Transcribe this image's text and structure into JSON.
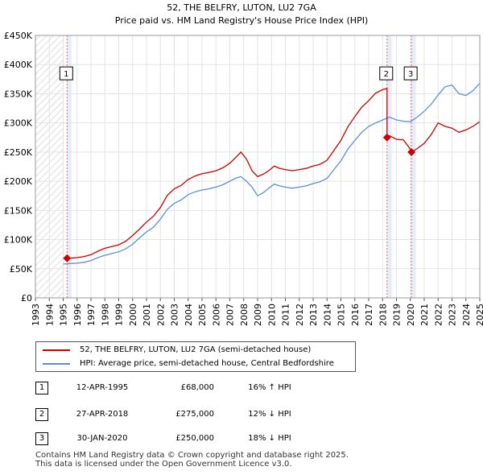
{
  "chart_data": {
    "type": "line",
    "title": "52, THE BELFRY, LUTON, LU2 7GA",
    "subtitle": "Price paid vs. HM Land Registry's House Price Index (HPI)",
    "xlim": [
      1993,
      2025
    ],
    "ylim": [
      0,
      450000
    ],
    "x_ticks": [
      "1993",
      "1994",
      "1995",
      "1996",
      "1997",
      "1998",
      "1999",
      "2000",
      "2001",
      "2002",
      "2003",
      "2004",
      "2005",
      "2006",
      "2007",
      "2008",
      "2009",
      "2010",
      "2011",
      "2012",
      "2013",
      "2014",
      "2015",
      "2016",
      "2017",
      "2018",
      "2019",
      "2020",
      "2021",
      "2022",
      "2023",
      "2024",
      "2025"
    ],
    "y_ticks": [
      {
        "value": 0,
        "label": "£0"
      },
      {
        "value": 50000,
        "label": "£50K"
      },
      {
        "value": 100000,
        "label": "£100K"
      },
      {
        "value": 150000,
        "label": "£150K"
      },
      {
        "value": 200000,
        "label": "£200K"
      },
      {
        "value": 250000,
        "label": "£250K"
      },
      {
        "value": 300000,
        "label": "£300K"
      },
      {
        "value": 350000,
        "label": "£350K"
      },
      {
        "value": 400000,
        "label": "£400K"
      },
      {
        "value": 450000,
        "label": "£450K"
      }
    ],
    "colors": {
      "property": "#cc0000",
      "hpi": "#5b8fd4",
      "sale_line": "#e06666",
      "shade": "#dde6f4",
      "hatch": "#c8c8c8"
    },
    "shaded_ranges": [
      [
        1995.28,
        1995.6
      ],
      [
        2018.32,
        2018.65
      ],
      [
        2020.08,
        2020.4
      ]
    ],
    "hatched_range": [
      1993,
      1995.0
    ],
    "hpi_series": {
      "name": "HPI: Average price, semi-detached house, Central Bedfordshire",
      "x": [
        1995.0,
        1995.5,
        1996.0,
        1996.5,
        1997.0,
        1997.5,
        1998.0,
        1998.5,
        1999.0,
        1999.5,
        2000.0,
        2000.5,
        2001.0,
        2001.5,
        2002.0,
        2002.5,
        2003.0,
        2003.5,
        2004.0,
        2004.5,
        2005.0,
        2005.5,
        2006.0,
        2006.5,
        2007.0,
        2007.4,
        2007.8,
        2008.2,
        2008.6,
        2009.0,
        2009.4,
        2009.8,
        2010.2,
        2010.6,
        2011.0,
        2011.5,
        2012.0,
        2012.5,
        2013.0,
        2013.5,
        2014.0,
        2014.5,
        2015.0,
        2015.5,
        2016.0,
        2016.5,
        2017.0,
        2017.5,
        2018.0,
        2018.5,
        2019.0,
        2019.5,
        2020.0,
        2020.5,
        2021.0,
        2021.5,
        2022.0,
        2022.5,
        2023.0,
        2023.5,
        2024.0,
        2024.5,
        2025.0
      ],
      "y": [
        58000,
        59000,
        59500,
        61000,
        64000,
        69000,
        73000,
        76000,
        79000,
        84000,
        92000,
        103000,
        113000,
        121000,
        135000,
        152000,
        162000,
        168000,
        177000,
        182000,
        185000,
        187000,
        190000,
        194000,
        200000,
        205000,
        208000,
        200000,
        190000,
        175000,
        180000,
        188000,
        195000,
        192000,
        190000,
        188000,
        190000,
        192000,
        196000,
        199000,
        205000,
        220000,
        235000,
        255000,
        270000,
        284000,
        294000,
        300000,
        305000,
        310000,
        305000,
        303000,
        302000,
        310000,
        320000,
        332000,
        348000,
        362000,
        365000,
        350000,
        347000,
        355000,
        368000
      ]
    },
    "price_series": {
      "name": "52, THE BELFRY, LUTON, LU2 7GA (semi-detached house)",
      "x": [
        1995.28,
        1995.5,
        1996.0,
        1996.5,
        1997.0,
        1997.5,
        1998.0,
        1998.5,
        1999.0,
        1999.5,
        2000.0,
        2000.5,
        2001.0,
        2001.5,
        2002.0,
        2002.5,
        2003.0,
        2003.5,
        2004.0,
        2004.5,
        2005.0,
        2005.5,
        2006.0,
        2006.5,
        2007.0,
        2007.4,
        2007.8,
        2008.2,
        2008.6,
        2009.0,
        2009.4,
        2009.8,
        2010.2,
        2010.6,
        2011.0,
        2011.5,
        2012.0,
        2012.5,
        2013.0,
        2013.5,
        2014.0,
        2014.5,
        2015.0,
        2015.5,
        2016.0,
        2016.5,
        2017.0,
        2017.5,
        2018.0,
        2018.32,
        2018.32,
        2018.5,
        2019.0,
        2019.5,
        2020.0,
        2020.08,
        2020.08,
        2020.5,
        2021.0,
        2021.5,
        2022.0,
        2022.5,
        2023.0,
        2023.5,
        2024.0,
        2024.5,
        2025.0
      ],
      "y": [
        68000,
        68000,
        69000,
        71000,
        74000,
        80000,
        85000,
        88000,
        91000,
        97000,
        107000,
        118000,
        130000,
        140000,
        155000,
        176000,
        187000,
        193000,
        203000,
        209000,
        213000,
        215000,
        218000,
        223000,
        231000,
        240000,
        250000,
        238000,
        218000,
        208000,
        212000,
        218000,
        226000,
        222000,
        220000,
        218000,
        220000,
        222000,
        226000,
        229000,
        236000,
        253000,
        270000,
        293000,
        311000,
        327000,
        338000,
        351000,
        357000,
        359000,
        275000,
        278000,
        272000,
        271000,
        255000,
        250000,
        250000,
        256000,
        265000,
        280000,
        300000,
        294000,
        291000,
        284000,
        288000,
        294000,
        302000
      ]
    },
    "sales": [
      {
        "id": "1",
        "x": 1995.28,
        "y": 68000
      },
      {
        "id": "2",
        "x": 2018.32,
        "y": 275000
      },
      {
        "id": "3",
        "x": 2020.08,
        "y": 250000
      }
    ]
  },
  "legend": {
    "property_label": "52, THE BELFRY, LUTON, LU2 7GA (semi-detached house)",
    "hpi_label": "HPI: Average price, semi-detached house, Central Bedfordshire"
  },
  "sales_table": [
    {
      "num": "1",
      "date": "12-APR-1995",
      "price": "£68,000",
      "hpi": "16% ↑ HPI"
    },
    {
      "num": "2",
      "date": "27-APR-2018",
      "price": "£275,000",
      "hpi": "12% ↓ HPI"
    },
    {
      "num": "3",
      "date": "30-JAN-2020",
      "price": "£250,000",
      "hpi": "18% ↓ HPI"
    }
  ],
  "footer": {
    "line1": "Contains HM Land Registry data © Crown copyright and database right 2025.",
    "line2": "This data is licensed under the Open Government Licence v3.0."
  }
}
